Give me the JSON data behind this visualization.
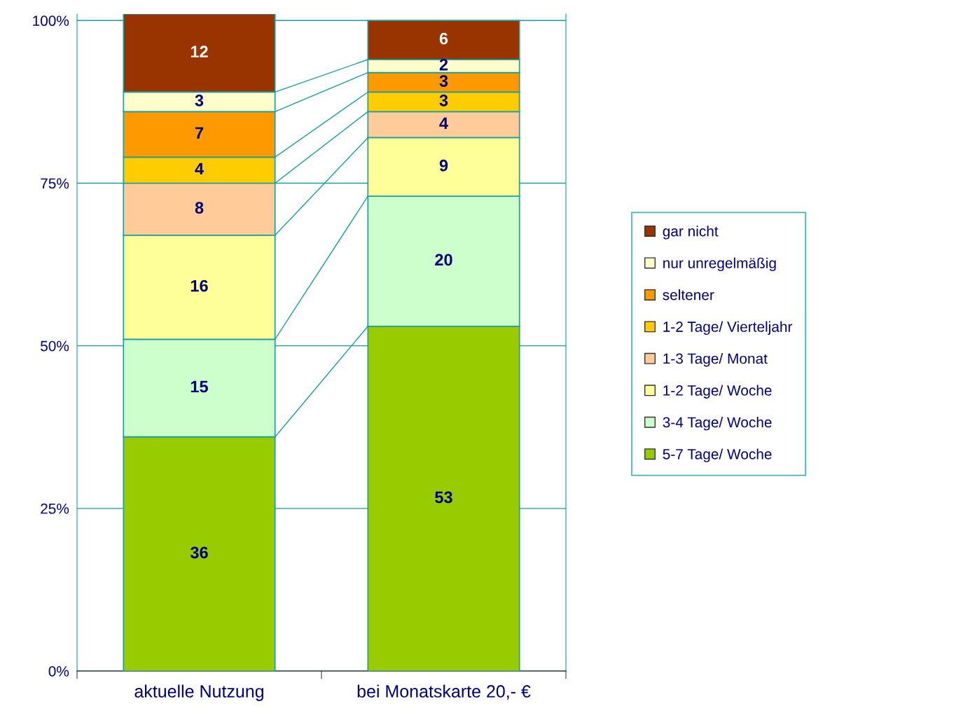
{
  "chart_data": {
    "type": "bar",
    "stacked": true,
    "categories": [
      "aktuelle Nutzung",
      "bei Monatskarte 20,- €"
    ],
    "series": [
      {
        "name": "5-7 Tage/ Woche",
        "color": "#99cc00",
        "values": [
          36,
          53
        ]
      },
      {
        "name": "3-4 Tage/ Woche",
        "color": "#ccffcc",
        "values": [
          15,
          20
        ]
      },
      {
        "name": "1-2 Tage/ Woche",
        "color": "#ffff99",
        "values": [
          16,
          9
        ]
      },
      {
        "name": "1-3 Tage/ Monat",
        "color": "#ffcc99",
        "values": [
          8,
          4
        ]
      },
      {
        "name": "1-2 Tage/ Vierteljahr",
        "color": "#ffcc00",
        "values": [
          4,
          3
        ]
      },
      {
        "name": "seltener",
        "color": "#ff9900",
        "values": [
          7,
          3
        ]
      },
      {
        "name": "nur unregelmäßig",
        "color": "#ffffcc",
        "values": [
          3,
          2
        ]
      },
      {
        "name": "gar nicht",
        "color": "#993300",
        "values": [
          12,
          6
        ]
      }
    ],
    "ylim": [
      0,
      101
    ],
    "yticks": [
      {
        "value": 0,
        "label": "0%"
      },
      {
        "value": 25,
        "label": "25%"
      },
      {
        "value": 50,
        "label": "50%"
      },
      {
        "value": 75,
        "label": "75%"
      },
      {
        "value": 100,
        "label": "100%"
      }
    ],
    "grid": "y",
    "legend": "right",
    "data_labels": true
  }
}
